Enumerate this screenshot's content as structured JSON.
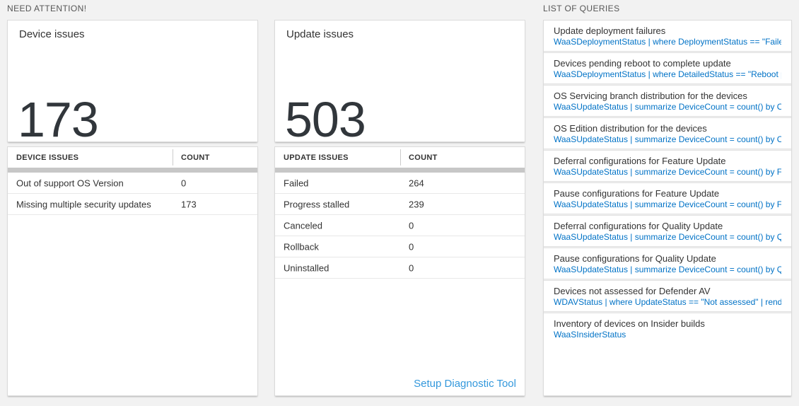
{
  "colors": {
    "page_background": "#f2f2f2",
    "tile_background": "#ffffff",
    "query_text_blue": "#0072c6",
    "setup_link_blue": "#3398dc",
    "number_text": "#31363b",
    "scrollbar_gray": "#c7c7c7"
  },
  "need_attention": {
    "section_title": "NEED ATTENTION!",
    "device_tile": {
      "title": "Device issues",
      "count": "173"
    },
    "device_table": {
      "headers": [
        "DEVICE ISSUES",
        "COUNT"
      ],
      "rows": [
        {
          "issue": "Out of support OS Version",
          "count": "0"
        },
        {
          "issue": "Missing multiple security updates",
          "count": "173"
        }
      ]
    },
    "update_tile": {
      "title": "Update issues",
      "count": "503"
    },
    "update_table": {
      "headers": [
        "UPDATE ISSUES",
        "COUNT"
      ],
      "rows": [
        {
          "issue": "Failed",
          "count": "264"
        },
        {
          "issue": "Progress stalled",
          "count": "239"
        },
        {
          "issue": "Canceled",
          "count": "0"
        },
        {
          "issue": "Rollback",
          "count": "0"
        },
        {
          "issue": "Uninstalled",
          "count": "0"
        }
      ]
    },
    "setup_link_label": "Setup Diagnostic Tool"
  },
  "queries": {
    "section_title": "LIST OF QUERIES",
    "items": [
      {
        "title": "Update deployment failures",
        "query": "WaaSDeploymentStatus | where DeploymentStatus == \"Failed\" |..."
      },
      {
        "title": "Devices pending reboot to complete update",
        "query": "WaaSDeploymentStatus | where DetailedStatus == \"Reboot pend..."
      },
      {
        "title": "OS Servicing branch distribution for the devices",
        "query": "WaaSUpdateStatus | summarize DeviceCount = count() by OSSer..."
      },
      {
        "title": "OS Edition distribution for the devices",
        "query": "WaaSUpdateStatus | summarize DeviceCount = count() by OSEdit..."
      },
      {
        "title": "Deferral configurations for Feature Update",
        "query": "WaaSUpdateStatus | summarize DeviceCount = count() by Featur..."
      },
      {
        "title": "Pause configurations for Feature Update",
        "query": "WaaSUpdateStatus | summarize DeviceCount = count() by Featur..."
      },
      {
        "title": "Deferral configurations for Quality Update",
        "query": "WaaSUpdateStatus | summarize DeviceCount = count() by Qualit..."
      },
      {
        "title": "Pause configurations for Quality Update",
        "query": "WaaSUpdateStatus | summarize DeviceCount = count() by Qualit..."
      },
      {
        "title": "Devices not assessed for Defender AV",
        "query": "WDAVStatus | where UpdateStatus == \"Not assessed\" | render ta..."
      },
      {
        "title": "Inventory of devices on Insider builds",
        "query": "WaaSInsiderStatus"
      }
    ]
  }
}
